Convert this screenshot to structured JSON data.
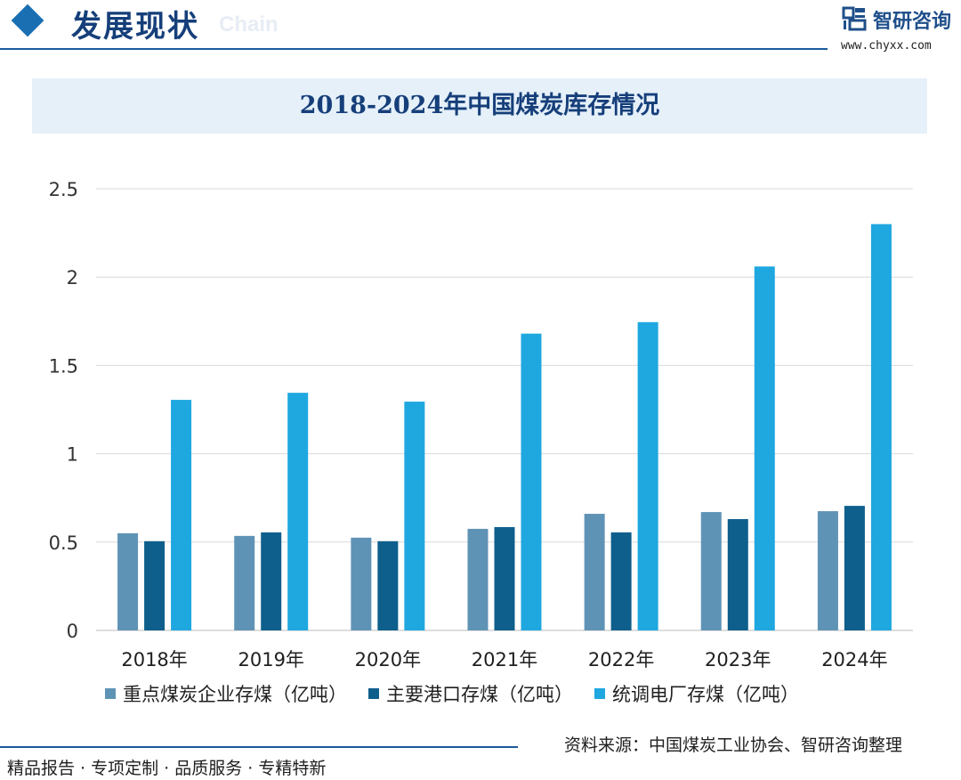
{
  "header": {
    "section_title": "发展现状",
    "section_en": "Chain",
    "brand_name": "智研咨询",
    "brand_url": "www.chyxx.com"
  },
  "chart_data": {
    "type": "bar",
    "title": "2018-2024年中国煤炭库存情况",
    "categories": [
      "2018年",
      "2019年",
      "2020年",
      "2021年",
      "2022年",
      "2023年",
      "2024年"
    ],
    "series": [
      {
        "name": "重点煤炭企业存煤（亿吨）",
        "color": "#5f93b6",
        "values": [
          0.55,
          0.535,
          0.525,
          0.575,
          0.66,
          0.67,
          0.675
        ]
      },
      {
        "name": "主要港口存煤（亿吨）",
        "color": "#0e5f8c",
        "values": [
          0.505,
          0.555,
          0.505,
          0.585,
          0.555,
          0.63,
          0.705
        ]
      },
      {
        "name": "统调电厂存煤（亿吨）",
        "color": "#1fa7e0",
        "values": [
          1.305,
          1.345,
          1.295,
          1.68,
          1.745,
          2.06,
          2.3
        ]
      }
    ],
    "y_ticks": [
      "0",
      "0.5",
      "1",
      "1.5",
      "2",
      "2.5"
    ],
    "ylim": [
      0,
      2.5
    ],
    "grid": true,
    "legend_position": "bottom-left"
  },
  "footer": {
    "source": "资料来源：中国煤炭工业协会、智研咨询整理",
    "slogan": "精品报告 · 专项定制 · 品质服务 · 专精特新"
  }
}
